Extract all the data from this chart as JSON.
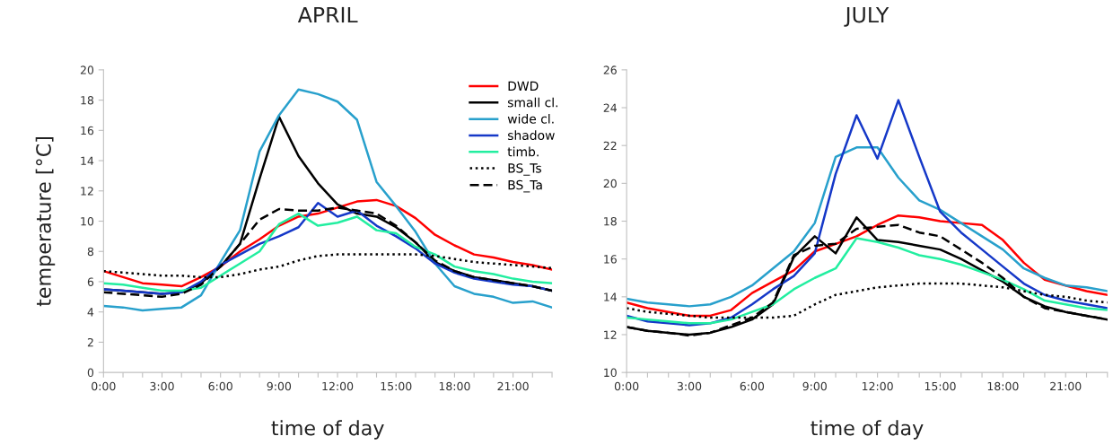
{
  "chart_data": [
    {
      "type": "line",
      "title": "APRIL",
      "xlabel": "time of day",
      "ylabel": "temperature [°C]",
      "x": [
        0,
        1,
        2,
        3,
        4,
        5,
        6,
        7,
        8,
        9,
        10,
        11,
        12,
        13,
        14,
        15,
        16,
        17,
        18,
        19,
        20,
        21,
        22,
        23
      ],
      "xlim": [
        0,
        23
      ],
      "xticks": [
        {
          "value": 0,
          "label": "0:00"
        },
        {
          "value": 1,
          "label": null
        },
        {
          "value": 2,
          "label": null
        },
        {
          "value": 3,
          "label": "3:00"
        },
        {
          "value": 4,
          "label": null
        },
        {
          "value": 5,
          "label": null
        },
        {
          "value": 6,
          "label": "6:00"
        },
        {
          "value": 7,
          "label": null
        },
        {
          "value": 8,
          "label": null
        },
        {
          "value": 9,
          "label": "9:00"
        },
        {
          "value": 10,
          "label": null
        },
        {
          "value": 11,
          "label": null
        },
        {
          "value": 12,
          "label": "12:00"
        },
        {
          "value": 13,
          "label": null
        },
        {
          "value": 14,
          "label": null
        },
        {
          "value": 15,
          "label": "15:00"
        },
        {
          "value": 16,
          "label": null
        },
        {
          "value": 17,
          "label": null
        },
        {
          "value": 18,
          "label": "18:00"
        },
        {
          "value": 19,
          "label": null
        },
        {
          "value": 20,
          "label": null
        },
        {
          "value": 21,
          "label": "21:00"
        },
        {
          "value": 22,
          "label": null
        },
        {
          "value": 23,
          "label": null
        }
      ],
      "ylim": [
        0,
        20
      ],
      "yticks": [
        0,
        2,
        4,
        6,
        8,
        10,
        12,
        14,
        16,
        18,
        20
      ],
      "grid": false,
      "legend": "top right",
      "series": [
        {
          "name": "DWD",
          "color": "#ff0000",
          "line_style": "solid",
          "values": [
            6.7,
            6.3,
            5.9,
            5.8,
            5.7,
            6.3,
            7.0,
            8.0,
            8.8,
            9.7,
            10.3,
            10.5,
            10.9,
            11.3,
            11.4,
            11.0,
            10.2,
            9.1,
            8.4,
            7.8,
            7.6,
            7.3,
            7.1,
            6.8
          ]
        },
        {
          "name": "small cl.",
          "color": "#000000",
          "line_style": "solid",
          "values": [
            5.5,
            5.4,
            5.3,
            5.2,
            5.3,
            5.9,
            7.0,
            8.5,
            12.8,
            16.9,
            14.3,
            12.5,
            11.1,
            10.5,
            10.3,
            9.6,
            8.6,
            7.3,
            6.7,
            6.3,
            6.1,
            5.9,
            5.7,
            5.4
          ]
        },
        {
          "name": "wide cl.",
          "color": "#28a0cc",
          "line_style": "solid",
          "values": [
            4.4,
            4.3,
            4.1,
            4.2,
            4.3,
            5.1,
            7.3,
            9.4,
            14.6,
            17.0,
            18.7,
            18.4,
            17.9,
            16.7,
            12.6,
            11.0,
            9.3,
            7.2,
            5.7,
            5.2,
            5.0,
            4.6,
            4.7,
            4.3
          ]
        },
        {
          "name": "shadow",
          "color": "#1538c8",
          "line_style": "solid",
          "values": [
            5.5,
            5.4,
            5.3,
            5.2,
            5.3,
            6.0,
            7.1,
            7.8,
            8.5,
            9.0,
            9.6,
            11.2,
            10.3,
            10.7,
            9.7,
            9.0,
            8.2,
            7.2,
            6.6,
            6.2,
            6.0,
            5.8,
            5.7,
            5.4
          ]
        },
        {
          "name": "timb.",
          "color": "#22eea0",
          "line_style": "solid",
          "values": [
            5.9,
            5.8,
            5.6,
            5.4,
            5.4,
            5.6,
            6.4,
            7.2,
            8.0,
            9.8,
            10.5,
            9.7,
            9.9,
            10.3,
            9.4,
            9.2,
            8.3,
            7.8,
            7.0,
            6.7,
            6.5,
            6.2,
            6.0,
            5.9
          ]
        },
        {
          "name": "BS_Ts",
          "color": "#000000",
          "line_style": "dotted",
          "values": [
            6.7,
            6.6,
            6.5,
            6.4,
            6.4,
            6.3,
            6.3,
            6.5,
            6.8,
            7.0,
            7.4,
            7.7,
            7.8,
            7.8,
            7.8,
            7.8,
            7.8,
            7.7,
            7.5,
            7.3,
            7.2,
            7.1,
            7.0,
            6.9
          ]
        },
        {
          "name": "BS_Ta",
          "color": "#000000",
          "line_style": "dashed",
          "values": [
            5.3,
            5.2,
            5.1,
            5.0,
            5.2,
            5.8,
            7.0,
            8.5,
            10.1,
            10.8,
            10.7,
            10.7,
            10.9,
            10.7,
            10.5,
            9.7,
            8.6,
            7.4,
            6.7,
            6.3,
            6.1,
            5.9,
            5.7,
            5.4
          ]
        }
      ]
    },
    {
      "type": "line",
      "title": "JULY",
      "xlabel": "time of day",
      "x": [
        0,
        1,
        2,
        3,
        4,
        5,
        6,
        7,
        8,
        9,
        10,
        11,
        12,
        13,
        14,
        15,
        16,
        17,
        18,
        19,
        20,
        21,
        22,
        23
      ],
      "xlim": [
        0,
        23
      ],
      "xticks": [
        {
          "value": 0,
          "label": "0:00"
        },
        {
          "value": 1,
          "label": null
        },
        {
          "value": 2,
          "label": null
        },
        {
          "value": 3,
          "label": "3:00"
        },
        {
          "value": 4,
          "label": null
        },
        {
          "value": 5,
          "label": null
        },
        {
          "value": 6,
          "label": "6:00"
        },
        {
          "value": 7,
          "label": null
        },
        {
          "value": 8,
          "label": null
        },
        {
          "value": 9,
          "label": "9:00"
        },
        {
          "value": 10,
          "label": null
        },
        {
          "value": 11,
          "label": null
        },
        {
          "value": 12,
          "label": "12:00"
        },
        {
          "value": 13,
          "label": null
        },
        {
          "value": 14,
          "label": null
        },
        {
          "value": 15,
          "label": "15:00"
        },
        {
          "value": 16,
          "label": null
        },
        {
          "value": 17,
          "label": null
        },
        {
          "value": 18,
          "label": "18:00"
        },
        {
          "value": 19,
          "label": null
        },
        {
          "value": 20,
          "label": null
        },
        {
          "value": 21,
          "label": "21:00"
        },
        {
          "value": 22,
          "label": null
        },
        {
          "value": 23,
          "label": null
        }
      ],
      "ylim": [
        10,
        26
      ],
      "yticks": [
        10,
        12,
        14,
        16,
        18,
        20,
        22,
        24,
        26
      ],
      "grid": false,
      "legend": false,
      "series": [
        {
          "color": "#ff0000",
          "line_style": "solid",
          "values": [
            13.7,
            13.4,
            13.2,
            13.0,
            13.0,
            13.3,
            14.2,
            14.8,
            15.4,
            16.4,
            16.8,
            17.2,
            17.8,
            18.3,
            18.2,
            18.0,
            17.9,
            17.8,
            17.0,
            15.8,
            14.9,
            14.6,
            14.3,
            14.1
          ]
        },
        {
          "color": "#000000",
          "line_style": "solid",
          "values": [
            12.4,
            12.2,
            12.1,
            12.0,
            12.1,
            12.4,
            12.8,
            13.6,
            16.1,
            17.2,
            16.3,
            18.2,
            17.0,
            16.9,
            16.7,
            16.5,
            16.0,
            15.4,
            14.8,
            14.0,
            13.5,
            13.2,
            13.0,
            12.8
          ]
        },
        {
          "color": "#28a0cc",
          "line_style": "solid",
          "values": [
            13.9,
            13.7,
            13.6,
            13.5,
            13.6,
            14.0,
            14.6,
            15.5,
            16.4,
            17.9,
            21.4,
            21.9,
            21.9,
            20.3,
            19.1,
            18.6,
            17.9,
            17.2,
            16.5,
            15.5,
            15.0,
            14.6,
            14.5,
            14.3
          ]
        },
        {
          "color": "#1538c8",
          "line_style": "solid",
          "values": [
            13.0,
            12.7,
            12.6,
            12.5,
            12.6,
            12.9,
            13.6,
            14.4,
            15.1,
            16.3,
            20.5,
            23.6,
            21.3,
            24.4,
            21.4,
            18.5,
            17.4,
            16.5,
            15.6,
            14.7,
            14.1,
            13.8,
            13.6,
            13.4
          ]
        },
        {
          "color": "#22eea0",
          "line_style": "solid",
          "values": [
            12.9,
            12.8,
            12.7,
            12.6,
            12.6,
            12.8,
            13.2,
            13.6,
            14.4,
            15.0,
            15.5,
            17.1,
            16.9,
            16.6,
            16.2,
            16.0,
            15.7,
            15.3,
            14.9,
            14.4,
            13.8,
            13.6,
            13.4,
            13.3
          ]
        },
        {
          "color": "#000000",
          "line_style": "dotted",
          "values": [
            13.4,
            13.2,
            13.1,
            13.0,
            12.9,
            12.9,
            12.9,
            12.9,
            13.0,
            13.6,
            14.1,
            14.3,
            14.5,
            14.6,
            14.7,
            14.7,
            14.7,
            14.6,
            14.5,
            14.3,
            14.1,
            14.0,
            13.8,
            13.7
          ]
        },
        {
          "color": "#000000",
          "line_style": "dashed",
          "values": [
            12.4,
            12.2,
            12.1,
            11.95,
            12.1,
            12.5,
            12.9,
            13.7,
            16.2,
            16.7,
            16.8,
            17.6,
            17.7,
            17.8,
            17.4,
            17.2,
            16.5,
            15.8,
            15.0,
            14.0,
            13.4,
            13.2,
            13.0,
            12.8
          ]
        }
      ]
    }
  ]
}
